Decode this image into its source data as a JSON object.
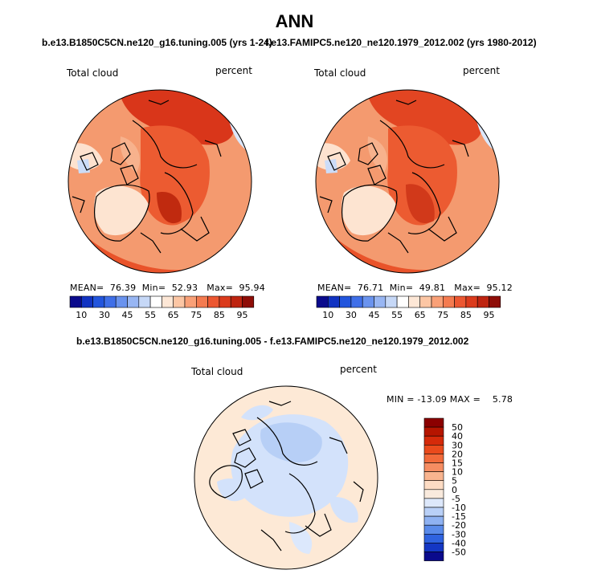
{
  "main_title": "ANN",
  "top_left": {
    "case_title": "b.e13.B1850C5CN.ne120_g16.tuning.005 (yrs 1-24)",
    "field": "Total cloud",
    "units": "percent",
    "mean_label": "MEAN=",
    "mean": "76.39",
    "min_label": "Min=",
    "min": "52.93",
    "max_label": "Max=",
    "max": "95.94"
  },
  "top_right": {
    "case_title": "f.e13.FAMIPC5.ne120_ne120.1979_2012.002 (yrs 1980-2012)",
    "field": "Total cloud",
    "units": "percent",
    "mean_label": "MEAN=",
    "mean": "76.71",
    "min_label": "Min=",
    "min": "49.81",
    "max_label": "Max=",
    "max": "95.12"
  },
  "diff": {
    "case_title": "b.e13.B1850C5CN.ne120_g16.tuning.005 - f.e13.FAMIPC5.ne120_ne120.1979_2012.002",
    "field": "Total cloud",
    "units": "percent",
    "min_label": "MIN =",
    "min": "-13.09",
    "max_label": "MAX =",
    "max": "5.78"
  },
  "colorbar_top": {
    "labels": [
      "10",
      "30",
      "45",
      "55",
      "65",
      "75",
      "85",
      "95"
    ],
    "colors": [
      "#0a0a8c",
      "#1133c2",
      "#2255dd",
      "#3f6fe8",
      "#6a93ee",
      "#98b6f3",
      "#c6d8f7",
      "#ffffff",
      "#fde7d6",
      "#fcc6a4",
      "#f9a077",
      "#f47b50",
      "#ec5731",
      "#db3b1c",
      "#be2410",
      "#8e0d07"
    ]
  },
  "colorbar_diff": {
    "labels": [
      "50",
      "40",
      "30",
      "20",
      "15",
      "10",
      "5",
      "0",
      "-5",
      "-10",
      "-15",
      "-20",
      "-30",
      "-40",
      "-50"
    ],
    "colors": [
      "#8b0000",
      "#b51500",
      "#d52a0a",
      "#ea4a1c",
      "#f26a3a",
      "#f68d62",
      "#f9b48f",
      "#fddcc4",
      "#f9eadd",
      "#dde8fb",
      "#b9d0f7",
      "#8fb2f2",
      "#5a8bea",
      "#2f63e0",
      "#1437c4",
      "#0a0a8c"
    ]
  },
  "map_colors": {
    "ocean_high": "#e8451f",
    "ocean_very_high": "#c8300f",
    "land_mid": "#f6a47c",
    "land_low": "#fde5d3",
    "diff_bg": "#fde9d6",
    "diff_blue": "#cfe0fb",
    "diff_blue2": "#aac6f4"
  }
}
